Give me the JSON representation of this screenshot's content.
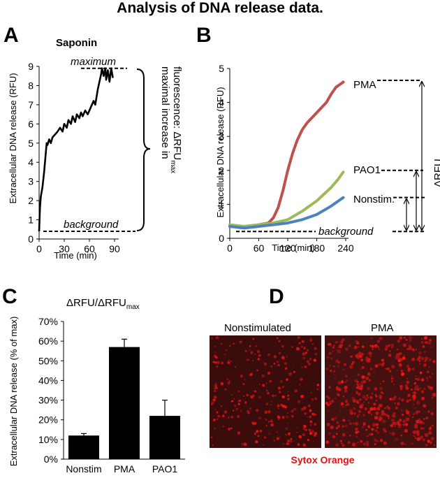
{
  "figure": {
    "title": "Analysis of DNA release data.",
    "panel_letters": [
      "A",
      "B",
      "C",
      "D"
    ]
  },
  "panel_a": {
    "chart_title": "Saponin",
    "ylabel": "Extracellular DNA release (RFU)",
    "xlabel": "Time (min)",
    "label_maximum": "maximum",
    "label_background": "background",
    "bracket_text_line1": "maximal increase in",
    "bracket_text_line2": "fluorescence: ΔRFU",
    "bracket_text_sub": "max"
  },
  "panel_b": {
    "ylabel": "Extracellular DNA release (RFU)",
    "xlabel": "Time (min)",
    "label_background": "background",
    "label_delta": "ΔRFU"
  },
  "panel_c": {
    "chart_title_main": "ΔRFU/ΔRFU",
    "chart_title_sub": "max",
    "ylabel": "Extracellular DNA release (% of max)"
  },
  "panel_d": {
    "label_left": "Nonstimulated",
    "label_right": "PMA",
    "stain_label": "Sytox Orange"
  },
  "chart_data": [
    {
      "panel": "A",
      "type": "line",
      "title": "Saponin",
      "xlabel": "Time (min)",
      "ylabel": "Extracellular DNA release (RFU)",
      "xlim": [
        0,
        90
      ],
      "ylim": [
        0,
        9
      ],
      "xticks": [
        0,
        30,
        60,
        90
      ],
      "yticks": [
        0,
        1,
        2,
        3,
        4,
        5,
        6,
        7,
        8,
        9
      ],
      "series": [
        {
          "color": "#000000",
          "x": [
            0,
            1,
            2,
            4,
            6,
            8,
            9,
            10,
            12,
            14,
            16,
            18,
            20,
            22,
            25,
            28,
            30,
            33,
            35,
            38,
            40,
            43,
            45,
            48,
            50,
            52,
            55,
            58,
            60,
            62,
            65,
            67,
            70,
            72,
            74,
            75,
            77,
            79,
            80,
            82,
            84,
            86,
            88
          ],
          "y": [
            0.4,
            1.6,
            2.2,
            2.7,
            3.5,
            4.5,
            5.0,
            4.9,
            5.2,
            5.0,
            5.3,
            5.4,
            5.5,
            5.6,
            5.8,
            5.6,
            6.0,
            5.8,
            6.2,
            6.0,
            6.4,
            6.1,
            6.5,
            6.3,
            6.6,
            6.4,
            6.7,
            6.5,
            6.7,
            6.9,
            7.2,
            7.0,
            7.8,
            8.2,
            8.6,
            8.9,
            8.5,
            8.9,
            8.3,
            8.8,
            8.2,
            8.9,
            8.4
          ]
        }
      ],
      "reference_lines": {
        "maximum": 8.9,
        "background": 0.4
      }
    },
    {
      "panel": "B",
      "type": "line",
      "xlabel": "Time (min)",
      "ylabel": "Extracellular DNA release (RFU)",
      "xlim": [
        0,
        240
      ],
      "ylim": [
        0,
        5
      ],
      "xticks": [
        0,
        60,
        120,
        180,
        240
      ],
      "yticks": [
        0,
        1,
        2,
        3,
        4,
        5
      ],
      "series": [
        {
          "name": "PMA",
          "color": "#c0504d",
          "x": [
            0,
            30,
            60,
            80,
            90,
            100,
            110,
            120,
            130,
            140,
            150,
            160,
            170,
            180,
            190,
            200,
            210,
            220,
            230,
            235
          ],
          "y": [
            0.35,
            0.35,
            0.4,
            0.45,
            0.6,
            0.9,
            1.4,
            2.0,
            2.5,
            2.9,
            3.2,
            3.4,
            3.55,
            3.7,
            3.85,
            4.0,
            4.25,
            4.45,
            4.55,
            4.6
          ]
        },
        {
          "name": "PAO1",
          "color": "#9bbb59",
          "x": [
            0,
            30,
            60,
            90,
            120,
            150,
            180,
            210,
            225,
            235
          ],
          "y": [
            0.4,
            0.35,
            0.4,
            0.45,
            0.55,
            0.8,
            1.1,
            1.5,
            1.75,
            1.95
          ]
        },
        {
          "name": "Nonstim.",
          "color": "#4f81bd",
          "x": [
            0,
            30,
            60,
            90,
            120,
            150,
            180,
            210,
            225,
            235
          ],
          "y": [
            0.35,
            0.3,
            0.35,
            0.4,
            0.45,
            0.55,
            0.7,
            0.95,
            1.1,
            1.2
          ]
        }
      ],
      "reference_lines": {
        "PMA": 4.65,
        "PAO1": 2.0,
        "Nonstim.": 1.2,
        "background": 0.2
      }
    },
    {
      "panel": "C",
      "type": "bar",
      "title": "ΔRFU/ΔRFUmax",
      "ylabel": "Extracellular DNA release (% of max)",
      "categories": [
        "Nonstim",
        "PMA",
        "PAO1"
      ],
      "values": [
        12,
        57,
        22
      ],
      "errors": [
        1,
        4,
        8
      ],
      "ylim": [
        0,
        70
      ],
      "yticks": [
        "0%",
        "10%",
        "20%",
        "30%",
        "40%",
        "50%",
        "60%",
        "70%"
      ],
      "color": "#000000"
    }
  ]
}
